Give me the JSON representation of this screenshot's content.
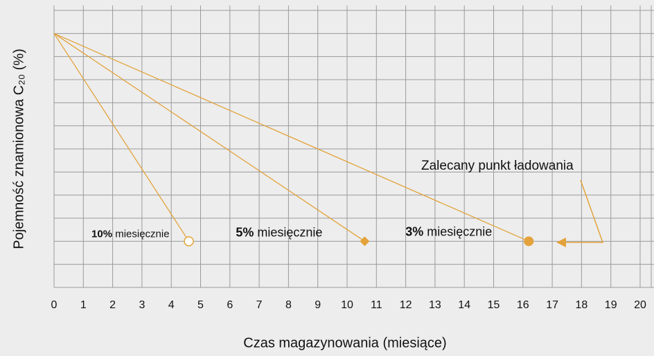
{
  "chart_data": {
    "type": "line",
    "xlabel": "Czas magazynowania (miesiące)",
    "ylabel": "Pojemność znamionowa C₂₀ (%)",
    "xlim": [
      0,
      20
    ],
    "xticks": [
      0,
      1,
      2,
      3,
      4,
      5,
      6,
      7,
      8,
      9,
      10,
      11,
      12,
      13,
      14,
      15,
      16,
      17,
      18,
      19,
      20
    ],
    "ylim": [
      0,
      12
    ],
    "yticks": [
      0,
      1,
      2,
      3,
      4,
      5,
      6,
      7,
      8,
      9,
      10,
      11,
      12
    ],
    "grid": true,
    "series": [
      {
        "name": "10% miesięcznie",
        "color": "#e3a33a",
        "marker": "open-circle",
        "x": [
          0,
          4.6
        ],
        "values": [
          11,
          2
        ]
      },
      {
        "name": "5% miesięcznie",
        "color": "#e3a33a",
        "marker": "diamond",
        "x": [
          0,
          10.6
        ],
        "values": [
          11,
          2
        ]
      },
      {
        "name": "3% miesięcznie",
        "color": "#e3a33a",
        "marker": "circle",
        "x": [
          0,
          16.2
        ],
        "values": [
          11,
          2
        ]
      }
    ],
    "annotation": "Zalecany punkt ładowania"
  }
}
